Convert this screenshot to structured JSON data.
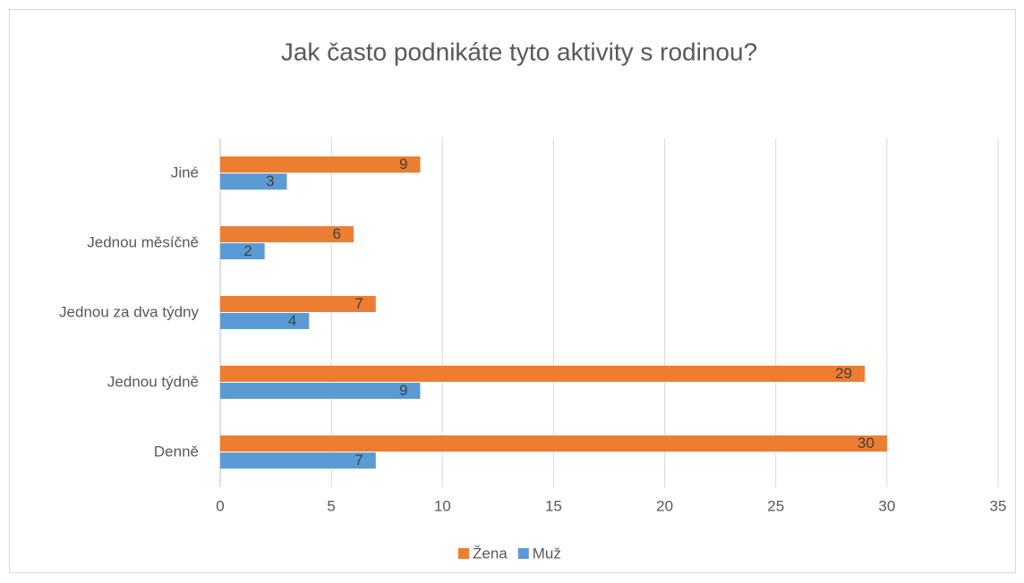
{
  "chart_data": {
    "type": "barh",
    "title": "Jak často podnikáte tyto aktivity s rodinou?",
    "categories": [
      "Denně",
      "Jednou týdně",
      "Jednou za dva týdny",
      "Jednou měsíčně",
      "Jiné"
    ],
    "series": [
      {
        "name": "Žena",
        "color": "#ed7d31",
        "values": [
          30,
          29,
          7,
          6,
          9
        ]
      },
      {
        "name": "Muž",
        "color": "#5b9bd5",
        "values": [
          7,
          9,
          4,
          2,
          3
        ]
      }
    ],
    "xlim": [
      0,
      35
    ],
    "xticks": [
      0,
      5,
      10,
      15,
      20,
      25,
      30,
      35
    ],
    "grid": true,
    "legend": "bottom"
  }
}
